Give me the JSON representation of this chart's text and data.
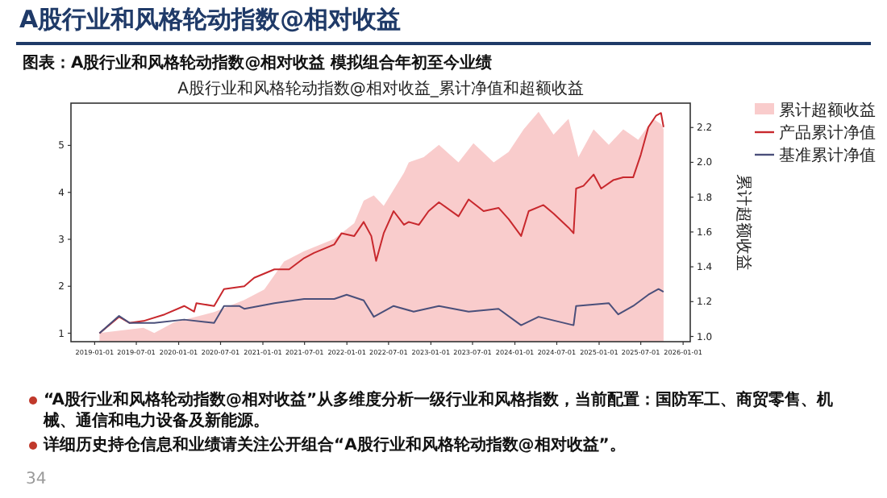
{
  "chart_data": {
    "type": "line",
    "title": "A股行业和风格轮动指数@相对收益",
    "subtitle": "图表：A股行业和风格轮动指数@相对收益 模拟组合年初至今业绩",
    "y2label": "累计超额收益",
    "xlim": [
      "2018-09-20",
      "2026-02-01"
    ],
    "xticks": [
      "2019-01-01",
      "2019-07-01",
      "2020-01-01",
      "2020-07-01",
      "2021-01-01",
      "2021-07-01",
      "2022-01-01",
      "2022-07-01",
      "2023-01-01",
      "2023-07-01",
      "2024-01-01",
      "2024-07-01",
      "2025-01-01",
      "2025-07-01",
      "2026-01-01"
    ],
    "ylim": [
      0.82,
      5.9
    ],
    "yticks": [
      1,
      2,
      3,
      4,
      5
    ],
    "y2lim": [
      0.97,
      2.34
    ],
    "y2ticks": [
      {
        "value": 1.0,
        "label": "1.0"
      },
      {
        "value": 1.2,
        "label": "1.2"
      },
      {
        "value": 1.4,
        "label": "1.4"
      },
      {
        "value": 1.6,
        "label": "1.6"
      },
      {
        "value": 1.8,
        "label": "1.8"
      },
      {
        "value": 2.0,
        "label": "2.0"
      },
      {
        "value": 2.2,
        "label": "2.2"
      }
    ],
    "grid": false,
    "legend": "right",
    "series": [
      {
        "name": "累计超额收益",
        "type": "area",
        "axis": "y2",
        "color": "#f9cccc",
        "x": [
          "2019-01-22",
          "2019-08-01",
          "2019-09-17",
          "2019-12-10",
          "2020-06-03",
          "2020-10-12",
          "2021-01-07",
          "2021-04-03",
          "2021-06-29",
          "2021-11-07",
          "2022-02-02",
          "2022-03-15",
          "2022-04-28",
          "2022-06-10",
          "2022-09-06",
          "2022-09-27",
          "2022-12-01",
          "2023-02-05",
          "2023-05-01",
          "2023-07-05",
          "2023-10-01",
          "2023-12-05",
          "2024-02-08",
          "2024-04-13",
          "2024-06-17",
          "2024-08-21",
          "2024-10-03",
          "2024-12-08",
          "2025-02-12",
          "2025-04-16",
          "2025-06-20",
          "2025-08-24",
          "2025-09-27",
          "2025-10-08"
        ],
        "values": [
          1.02,
          1.05,
          1.02,
          1.08,
          1.14,
          1.21,
          1.27,
          1.43,
          1.49,
          1.56,
          1.65,
          1.78,
          1.81,
          1.75,
          1.94,
          2.0,
          2.03,
          2.1,
          2.0,
          2.11,
          2.0,
          2.06,
          2.19,
          2.29,
          2.16,
          2.25,
          2.03,
          2.19,
          2.1,
          2.19,
          2.13,
          2.25,
          2.22,
          2.19
        ]
      },
      {
        "name": "产品累计净值",
        "axis": "y",
        "color": "#c8282d",
        "x": [
          "2019-01-22",
          "2019-04-17",
          "2019-06-01",
          "2019-08-01",
          "2019-11-01",
          "2020-01-25",
          "2020-03-08",
          "2020-03-18",
          "2020-06-03",
          "2020-07-16",
          "2020-10-12",
          "2020-11-24",
          "2021-02-20",
          "2021-04-25",
          "2021-06-29",
          "2021-08-11",
          "2021-11-07",
          "2021-12-09",
          "2022-02-02",
          "2022-03-15",
          "2022-04-17",
          "2022-05-08",
          "2022-06-10",
          "2022-07-23",
          "2022-09-06",
          "2022-09-27",
          "2022-11-10",
          "2022-12-22",
          "2023-02-05",
          "2023-05-01",
          "2023-06-14",
          "2023-08-18",
          "2023-10-22",
          "2023-12-05",
          "2024-01-28",
          "2024-03-01",
          "2024-05-04",
          "2024-06-17",
          "2024-08-21",
          "2024-09-12",
          "2024-09-23",
          "2024-10-25",
          "2024-12-08",
          "2025-01-10",
          "2025-03-03",
          "2025-04-16",
          "2025-05-29",
          "2025-07-01",
          "2025-08-03",
          "2025-09-05",
          "2025-09-27",
          "2025-10-08"
        ],
        "values": [
          1.0,
          1.35,
          1.22,
          1.26,
          1.4,
          1.58,
          1.46,
          1.64,
          1.58,
          1.94,
          2.0,
          2.18,
          2.36,
          2.36,
          2.6,
          2.71,
          2.89,
          3.13,
          3.07,
          3.37,
          3.07,
          2.54,
          3.13,
          3.6,
          3.31,
          3.37,
          3.31,
          3.6,
          3.79,
          3.49,
          3.85,
          3.6,
          3.67,
          3.43,
          3.07,
          3.6,
          3.73,
          3.55,
          3.25,
          3.13,
          4.08,
          4.14,
          4.38,
          4.08,
          4.26,
          4.32,
          4.32,
          4.8,
          5.39,
          5.63,
          5.69,
          5.39
        ]
      },
      {
        "name": "基准累计净值",
        "axis": "y",
        "color": "#4a4f7a",
        "x": [
          "2019-01-22",
          "2019-04-17",
          "2019-06-01",
          "2019-09-17",
          "2020-01-25",
          "2020-06-03",
          "2020-07-16",
          "2020-09-20",
          "2020-10-12",
          "2021-02-20",
          "2021-06-29",
          "2021-11-07",
          "2021-12-31",
          "2022-03-15",
          "2022-04-28",
          "2022-07-23",
          "2022-10-18",
          "2023-02-05",
          "2023-06-14",
          "2023-10-22",
          "2024-01-28",
          "2024-04-13",
          "2024-09-12",
          "2024-09-23",
          "2025-02-12",
          "2025-03-25",
          "2025-05-29",
          "2025-08-03",
          "2025-09-16",
          "2025-10-08"
        ],
        "values": [
          1.0,
          1.37,
          1.22,
          1.22,
          1.29,
          1.22,
          1.58,
          1.58,
          1.52,
          1.64,
          1.73,
          1.73,
          1.82,
          1.7,
          1.35,
          1.58,
          1.46,
          1.58,
          1.46,
          1.52,
          1.17,
          1.35,
          1.17,
          1.58,
          1.64,
          1.4,
          1.58,
          1.82,
          1.94,
          1.88
        ]
      }
    ],
    "annotations": [
      "A股行业和风格轮动指数@相对收益_累计净值和超额收益",
      "“A股行业和风格轮动指数@相对收益”从多维度分析一级行业和风格指数，当前配置：国防军工、商贸零售、机械、通信和电力设备及新能源。",
      "详细历史持仓信息和业绩请关注公开组合“A股行业和风格轮动指数@相对收益”。",
      "34"
    ]
  }
}
